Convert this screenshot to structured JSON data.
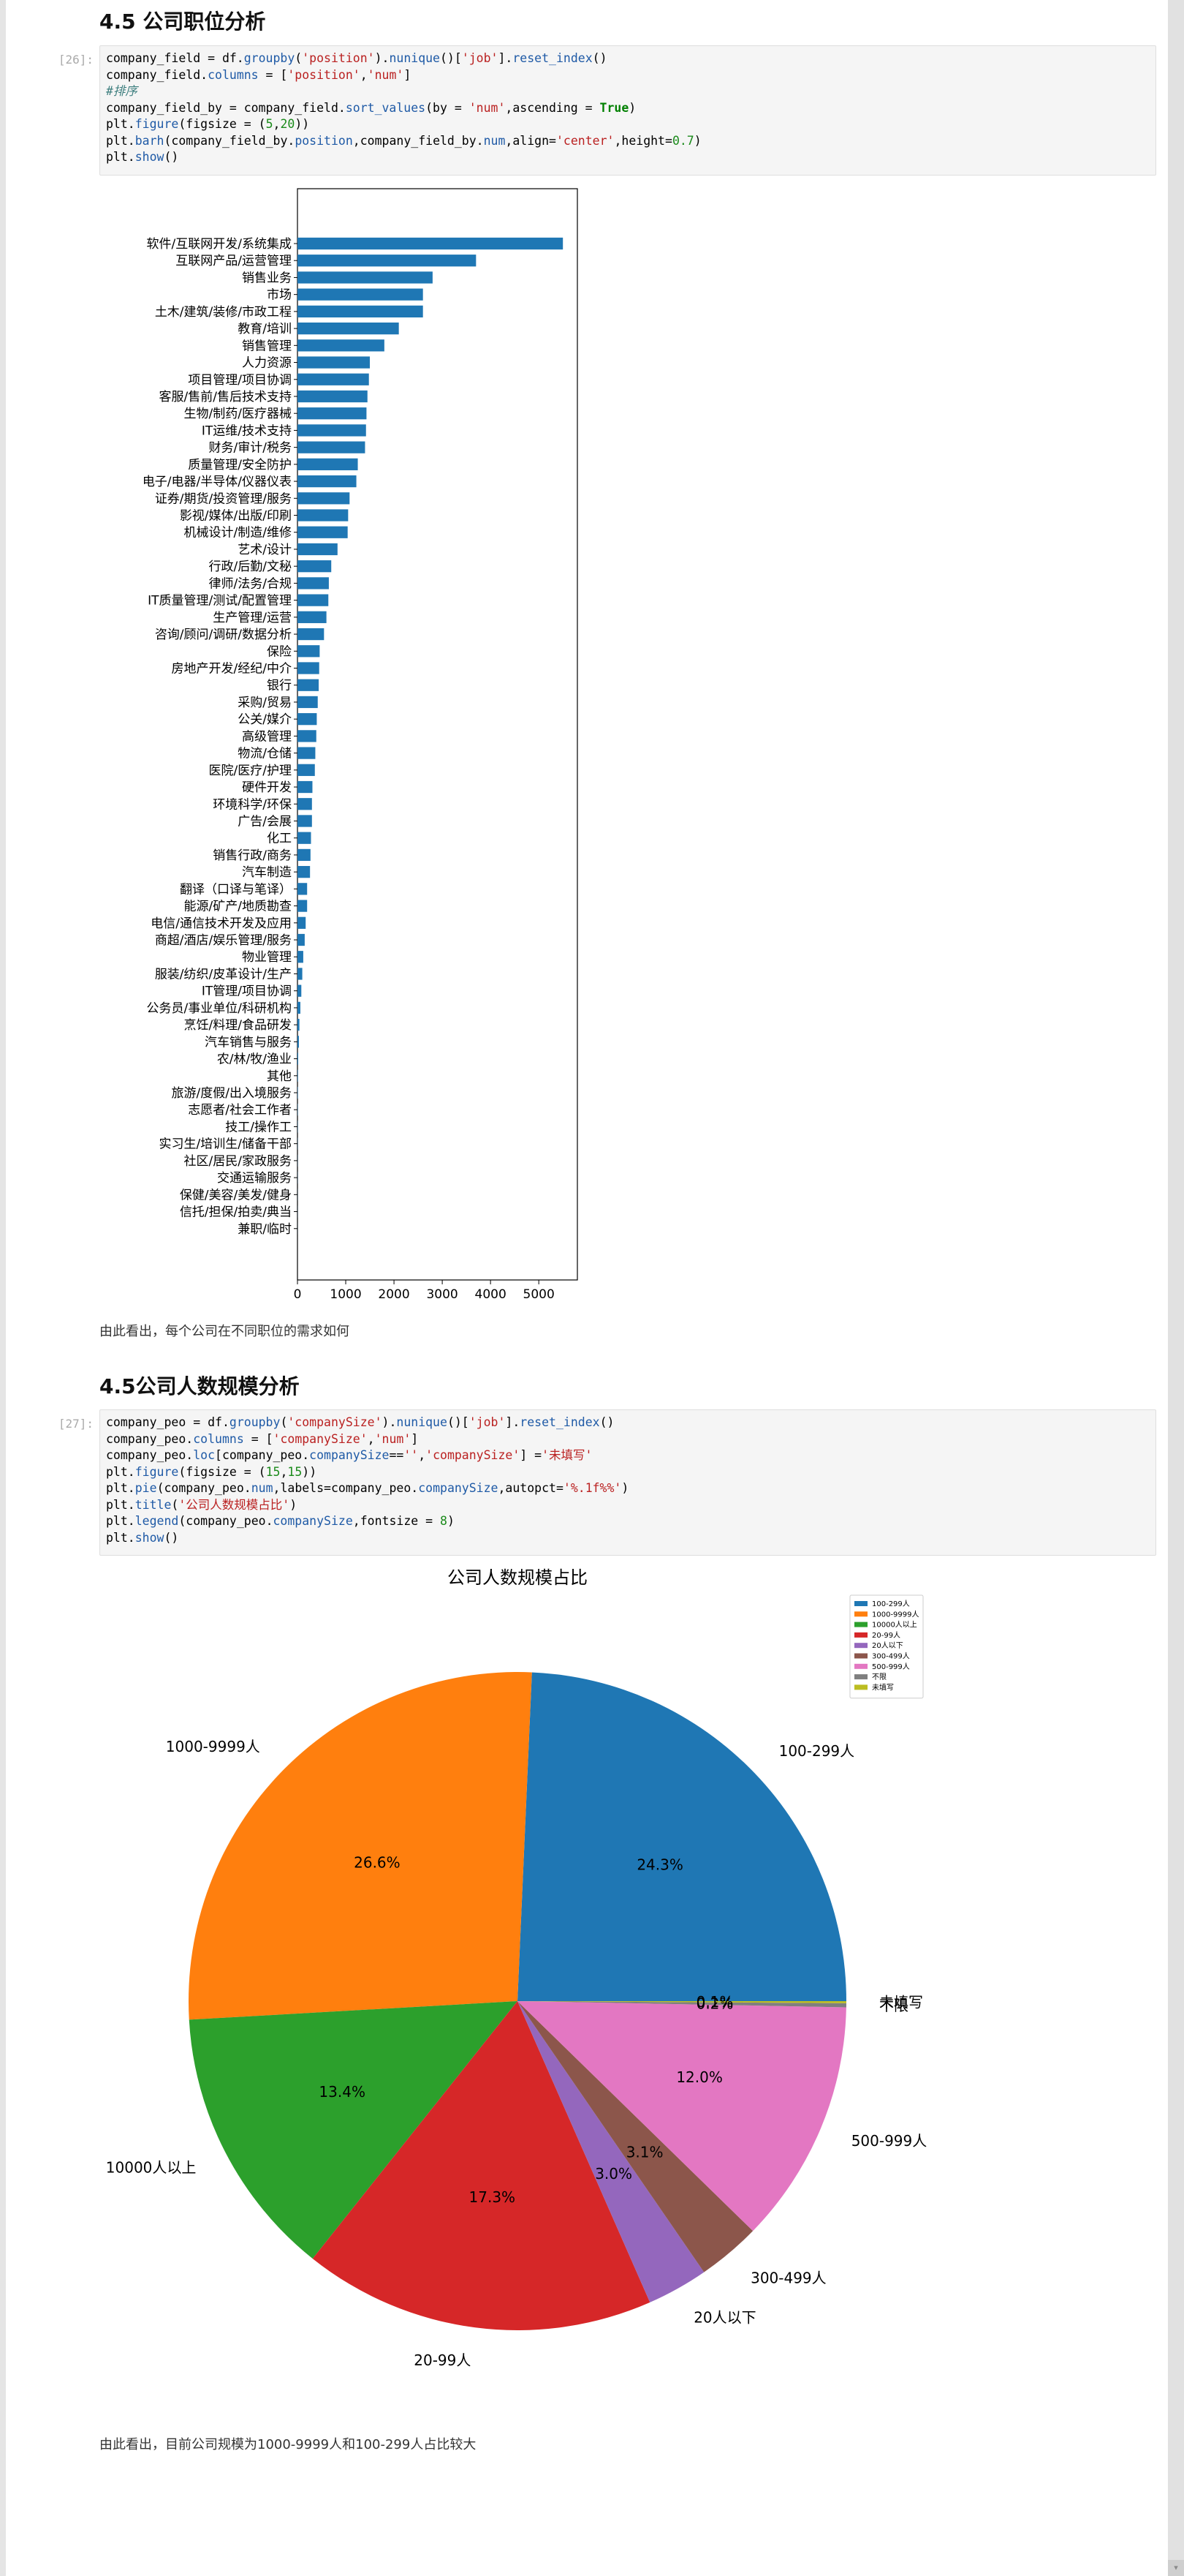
{
  "headings": {
    "position": "4.5 公司职位分析",
    "size": "4.5公司人数规模分析"
  },
  "cells": {
    "position": {
      "prompt": "[26]:",
      "lines": [
        [
          [
            "company_field = df.",
            ""
          ],
          [
            "groupby",
            "attr"
          ],
          [
            "(",
            ""
          ],
          [
            "'position'",
            "str"
          ],
          [
            ").",
            ""
          ],
          [
            "nunique",
            "attr"
          ],
          [
            "()[",
            ""
          ],
          [
            "'job'",
            "str"
          ],
          [
            "].",
            ""
          ],
          [
            "reset_index",
            "attr"
          ],
          [
            "()",
            ""
          ]
        ],
        [
          [
            "company_field.",
            ""
          ],
          [
            "columns",
            "attr"
          ],
          [
            " = [",
            ""
          ],
          [
            "'position'",
            "str"
          ],
          [
            ",",
            ""
          ],
          [
            "'num'",
            "str"
          ],
          [
            "]",
            ""
          ]
        ],
        [
          [
            "#排序",
            "com"
          ]
        ],
        [
          [
            "company_field_by = company_field.",
            ""
          ],
          [
            "sort_values",
            "attr"
          ],
          [
            "(by = ",
            ""
          ],
          [
            "'num'",
            "str"
          ],
          [
            ",ascending = ",
            ""
          ],
          [
            "True",
            "kw"
          ],
          [
            ")",
            ""
          ]
        ],
        [
          [
            "plt.",
            ""
          ],
          [
            "figure",
            "attr"
          ],
          [
            "(figsize = (",
            ""
          ],
          [
            "5",
            "num"
          ],
          [
            ",",
            ""
          ],
          [
            "20",
            "num"
          ],
          [
            "))",
            ""
          ]
        ],
        [
          [
            "plt.",
            ""
          ],
          [
            "barh",
            "attr"
          ],
          [
            "(company_field_by.",
            ""
          ],
          [
            "position",
            "attr"
          ],
          [
            ",company_field_by.",
            ""
          ],
          [
            "num",
            "attr"
          ],
          [
            ",align=",
            ""
          ],
          [
            "'center'",
            "str"
          ],
          [
            ",height=",
            ""
          ],
          [
            "0.7",
            "num"
          ],
          [
            ")",
            ""
          ]
        ],
        [
          [
            "plt.",
            ""
          ],
          [
            "show",
            "attr"
          ],
          [
            "()",
            ""
          ]
        ]
      ]
    },
    "size": {
      "prompt": "[27]:",
      "lines": [
        [
          [
            "company_peo = df.",
            ""
          ],
          [
            "groupby",
            "attr"
          ],
          [
            "(",
            ""
          ],
          [
            "'companySize'",
            "str"
          ],
          [
            ").",
            ""
          ],
          [
            "nunique",
            "attr"
          ],
          [
            "()[",
            ""
          ],
          [
            "'job'",
            "str"
          ],
          [
            "].",
            ""
          ],
          [
            "reset_index",
            "attr"
          ],
          [
            "()",
            ""
          ]
        ],
        [
          [
            "company_peo.",
            ""
          ],
          [
            "columns",
            "attr"
          ],
          [
            " = [",
            ""
          ],
          [
            "'companySize'",
            "str"
          ],
          [
            ",",
            ""
          ],
          [
            "'num'",
            "str"
          ],
          [
            "]",
            ""
          ]
        ],
        [
          [
            "company_peo.",
            ""
          ],
          [
            "loc",
            "attr"
          ],
          [
            "[company_peo.",
            ""
          ],
          [
            "companySize",
            "attr"
          ],
          [
            "==",
            ""
          ],
          [
            "''",
            "str"
          ],
          [
            ",",
            ""
          ],
          [
            "'companySize'",
            "str"
          ],
          [
            "] =",
            ""
          ],
          [
            "'未填写'",
            "str"
          ]
        ],
        [
          [
            "plt.",
            ""
          ],
          [
            "figure",
            "attr"
          ],
          [
            "(figsize = (",
            ""
          ],
          [
            "15",
            "num"
          ],
          [
            ",",
            ""
          ],
          [
            "15",
            "num"
          ],
          [
            "))",
            ""
          ]
        ],
        [
          [
            "plt.",
            ""
          ],
          [
            "pie",
            "attr"
          ],
          [
            "(company_peo.",
            ""
          ],
          [
            "num",
            "attr"
          ],
          [
            ",labels=company_peo.",
            ""
          ],
          [
            "companySize",
            "attr"
          ],
          [
            ",autopct=",
            ""
          ],
          [
            "'%.1f%%'",
            "str"
          ],
          [
            ")",
            ""
          ]
        ],
        [
          [
            "plt.",
            ""
          ],
          [
            "title",
            "attr"
          ],
          [
            "(",
            ""
          ],
          [
            "'公司人数规模占比'",
            "str"
          ],
          [
            ")",
            ""
          ]
        ],
        [
          [
            "plt.",
            ""
          ],
          [
            "legend",
            "attr"
          ],
          [
            "(company_peo.",
            ""
          ],
          [
            "companySize",
            "attr"
          ],
          [
            ",fontsize = ",
            ""
          ],
          [
            "8",
            "num"
          ],
          [
            ")",
            ""
          ]
        ],
        [
          [
            "plt.",
            ""
          ],
          [
            "show",
            "attr"
          ],
          [
            "()",
            ""
          ]
        ]
      ]
    }
  },
  "texts": {
    "position_note": "由此看出，每个公司在不同职位的需求如何",
    "size_note": "由此看出，目前公司规模为1000-9999人和100-299人占比较大"
  },
  "colors": {
    "bar": "#1f77b4",
    "pie": [
      "#1f77b4",
      "#ff7f0e",
      "#2ca02c",
      "#d62728",
      "#9467bd",
      "#8c564b",
      "#e377c2",
      "#7f7f7f",
      "#bcbd22"
    ]
  },
  "chart_data": [
    {
      "type": "bar",
      "orientation": "horizontal",
      "categories": [
        "软件/互联网开发/系统集成",
        "互联网产品/运营管理",
        "销售业务",
        "市场",
        "土木/建筑/装修/市政工程",
        "教育/培训",
        "销售管理",
        "人力资源",
        "项目管理/项目协调",
        "客服/售前/售后技术支持",
        "生物/制药/医疗器械",
        "IT运维/技术支持",
        "财务/审计/税务",
        "质量管理/安全防护",
        "电子/电器/半导体/仪器仪表",
        "证券/期货/投资管理/服务",
        "影视/媒体/出版/印刷",
        "机械设计/制造/维修",
        "艺术/设计",
        "行政/后勤/文秘",
        "律师/法务/合规",
        "IT质量管理/测试/配置管理",
        "生产管理/运营",
        "咨询/顾问/调研/数据分析",
        "保险",
        "房地产开发/经纪/中介",
        "银行",
        "采购/贸易",
        "公关/媒介",
        "高级管理",
        "物流/仓储",
        "医院/医疗/护理",
        "硬件开发",
        "环境科学/环保",
        "广告/会展",
        "化工",
        "销售行政/商务",
        "汽车制造",
        "翻译（口译与笔译）",
        "能源/矿产/地质勘查",
        "电信/通信技术开发及应用",
        "商超/酒店/娱乐管理/服务",
        "物业管理",
        "服装/纺织/皮革设计/生产",
        "IT管理/项目协调",
        "公务员/事业单位/科研机构",
        "烹饪/料理/食品研发",
        "汽车销售与服务",
        "农/林/牧/渔业",
        "其他",
        "旅游/度假/出入境服务",
        "志愿者/社会工作者",
        "技工/操作工",
        "实习生/培训生/储备干部",
        "社区/居民/家政服务",
        "交通运输服务",
        "保健/美容/美发/健身",
        "信托/担保/拍卖/典当",
        "兼职/临时"
      ],
      "values": [
        5500,
        3700,
        2800,
        2600,
        2600,
        2100,
        1800,
        1500,
        1480,
        1450,
        1430,
        1420,
        1400,
        1250,
        1220,
        1080,
        1050,
        1040,
        830,
        700,
        650,
        640,
        600,
        550,
        460,
        450,
        440,
        420,
        400,
        390,
        370,
        360,
        310,
        300,
        300,
        280,
        270,
        260,
        200,
        200,
        170,
        150,
        120,
        100,
        80,
        60,
        40,
        30,
        15,
        10,
        8,
        6,
        5,
        4,
        3,
        3,
        2,
        2,
        1
      ],
      "xlim": [
        0,
        5800
      ],
      "xticks": [
        0,
        1000,
        2000,
        3000,
        4000,
        5000
      ]
    },
    {
      "type": "pie",
      "title": "公司人数规模占比",
      "labels": [
        "100-299人",
        "1000-9999人",
        "10000人以上",
        "20-99人",
        "20人以下",
        "300-499人",
        "500-999人",
        "不限",
        "未填写"
      ],
      "values": [
        24.3,
        26.6,
        13.4,
        17.3,
        3.0,
        3.1,
        12.0,
        0.2,
        0.1
      ],
      "autopct": [
        "24.3%",
        "26.6%",
        "13.4%",
        "17.3%",
        "3.0%",
        "3.1%",
        "12.0%",
        "0.2%",
        "0.1%"
      ],
      "legend": "top-right"
    }
  ]
}
